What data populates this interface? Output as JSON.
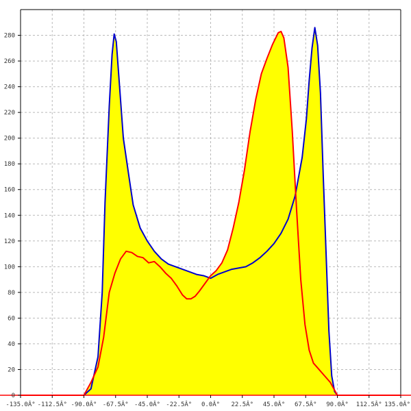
{
  "chart_data": {
    "type": "area",
    "title": "",
    "xlabel": "",
    "ylabel": "",
    "xlim": [
      -135,
      135
    ],
    "ylim": [
      0,
      300
    ],
    "grid": true,
    "x_ticks": [
      -135,
      -112.5,
      -90,
      -67.5,
      -45,
      -22.5,
      0,
      22.5,
      45,
      67.5,
      90,
      112.5,
      135
    ],
    "x_tick_labels": [
      "-135.0Â°",
      "-112.5Â°",
      "-90.0Â°",
      "-67.5Â°",
      "-45.0Â°",
      "-22.5Â°",
      "0.0Â°",
      "22.5Â°",
      "45.0Â°",
      "67.5Â°",
      "90.0Â°",
      "112.5Â°",
      "135.0Â°"
    ],
    "y_ticks": [
      0,
      20,
      40,
      60,
      80,
      100,
      120,
      140,
      160,
      180,
      200,
      220,
      240,
      260,
      280
    ],
    "y_tick_labels": [
      "0",
      "20",
      "40",
      "60",
      "80",
      "100",
      "120",
      "140",
      "160",
      "180",
      "200",
      "220",
      "240",
      "260",
      "280"
    ],
    "fill_color": "#ffff00",
    "series": [
      {
        "color": "#0000cc",
        "points": [
          [
            -135,
            0
          ],
          [
            -90,
            0
          ],
          [
            -85,
            5
          ],
          [
            -80,
            30
          ],
          [
            -77,
            80
          ],
          [
            -75,
            150
          ],
          [
            -72,
            225
          ],
          [
            -70,
            265
          ],
          [
            -68.5,
            281
          ],
          [
            -67,
            275
          ],
          [
            -65,
            245
          ],
          [
            -62,
            200
          ],
          [
            -58,
            170
          ],
          [
            -55,
            148
          ],
          [
            -50,
            130
          ],
          [
            -45,
            120
          ],
          [
            -40,
            112
          ],
          [
            -35,
            106
          ],
          [
            -30,
            102
          ],
          [
            -25,
            100
          ],
          [
            -20,
            98
          ],
          [
            -15,
            96
          ],
          [
            -10,
            94
          ],
          [
            -5,
            93
          ],
          [
            0,
            91
          ],
          [
            5,
            94
          ],
          [
            10,
            96
          ],
          [
            15,
            98
          ],
          [
            20,
            99
          ],
          [
            25,
            100
          ],
          [
            30,
            103
          ],
          [
            35,
            107
          ],
          [
            40,
            112
          ],
          [
            45,
            118
          ],
          [
            50,
            126
          ],
          [
            55,
            137
          ],
          [
            60,
            155
          ],
          [
            65,
            185
          ],
          [
            68,
            215
          ],
          [
            70,
            245
          ],
          [
            72,
            270
          ],
          [
            74,
            286
          ],
          [
            76,
            272
          ],
          [
            78,
            235
          ],
          [
            80,
            170
          ],
          [
            82,
            110
          ],
          [
            84,
            50
          ],
          [
            86,
            15
          ],
          [
            88,
            3
          ],
          [
            90,
            0
          ],
          [
            135,
            0
          ]
        ]
      },
      {
        "color": "#ff0000",
        "points": [
          [
            -135,
            0
          ],
          [
            -90,
            0
          ],
          [
            -85,
            10
          ],
          [
            -80,
            22
          ],
          [
            -76,
            45
          ],
          [
            -72,
            80
          ],
          [
            -68,
            95
          ],
          [
            -64,
            106
          ],
          [
            -60,
            112
          ],
          [
            -56,
            111
          ],
          [
            -52,
            108
          ],
          [
            -48,
            107
          ],
          [
            -44,
            103
          ],
          [
            -40,
            104
          ],
          [
            -36,
            100
          ],
          [
            -32,
            95
          ],
          [
            -28,
            91
          ],
          [
            -24,
            85
          ],
          [
            -20,
            78
          ],
          [
            -17,
            75
          ],
          [
            -14,
            75
          ],
          [
            -11,
            77
          ],
          [
            -8,
            81
          ],
          [
            -4,
            87
          ],
          [
            0,
            93
          ],
          [
            4,
            97
          ],
          [
            8,
            103
          ],
          [
            12,
            113
          ],
          [
            16,
            130
          ],
          [
            20,
            150
          ],
          [
            24,
            175
          ],
          [
            28,
            205
          ],
          [
            32,
            230
          ],
          [
            36,
            250
          ],
          [
            40,
            262
          ],
          [
            44,
            273
          ],
          [
            48,
            282
          ],
          [
            50,
            283
          ],
          [
            52,
            278
          ],
          [
            55,
            255
          ],
          [
            58,
            205
          ],
          [
            61,
            145
          ],
          [
            64,
            90
          ],
          [
            67,
            55
          ],
          [
            70,
            35
          ],
          [
            73,
            25
          ],
          [
            77,
            20
          ],
          [
            81,
            15
          ],
          [
            85,
            10
          ],
          [
            88,
            4
          ],
          [
            90,
            0
          ],
          [
            135,
            0
          ]
        ]
      }
    ]
  }
}
